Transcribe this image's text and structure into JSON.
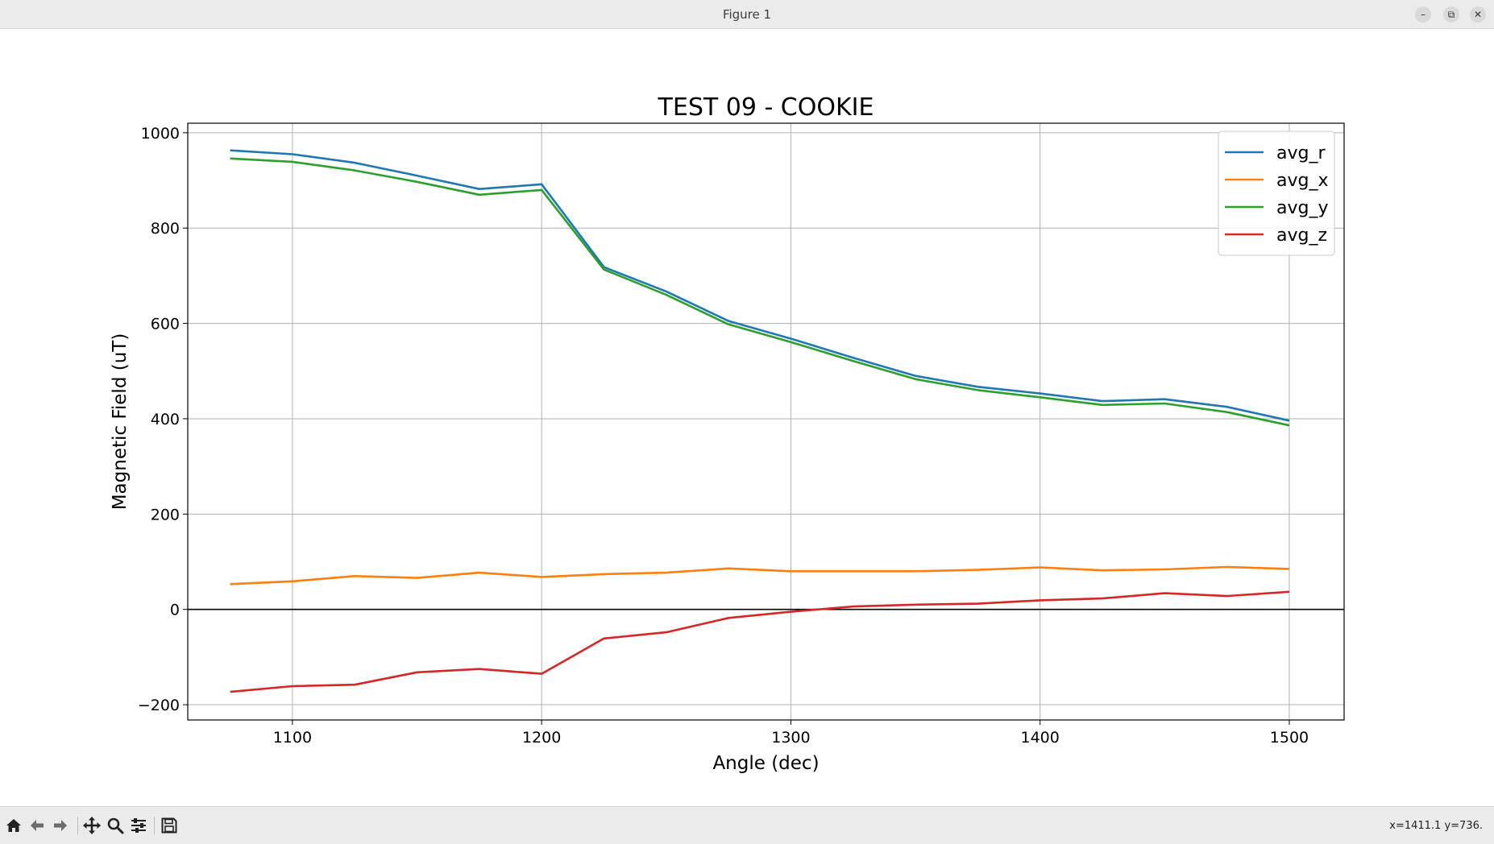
{
  "window": {
    "title": "Figure 1",
    "controls": {
      "minimize": "–",
      "restore": "⧉",
      "close": "✕"
    }
  },
  "toolbar": {
    "buttons": [
      {
        "name": "home-button",
        "icon": "home-icon"
      },
      {
        "name": "back-button",
        "icon": "arrow-left-icon"
      },
      {
        "name": "forward-button",
        "icon": "arrow-right-icon"
      },
      {
        "name": "pan-button",
        "icon": "move-icon"
      },
      {
        "name": "zoom-button",
        "icon": "magnifier-icon"
      },
      {
        "name": "configure-subplots-button",
        "icon": "sliders-icon"
      },
      {
        "name": "save-button",
        "icon": "floppy-disk-icon"
      }
    ],
    "coordinates": "x=1411.1 y=736."
  },
  "chart_data": {
    "type": "line",
    "title": "TEST 09 - COOKIE",
    "xlabel": "Angle (dec)",
    "ylabel": "Magnetic Field (uT)",
    "xlim": [
      1058,
      1522
    ],
    "ylim": [
      -232,
      1020
    ],
    "xticks": [
      1100,
      1200,
      1300,
      1400,
      1500
    ],
    "yticks": [
      -200,
      0,
      200,
      400,
      600,
      800,
      1000
    ],
    "ytick_labels": [
      "−200",
      "0",
      "200",
      "400",
      "600",
      "800",
      "1000"
    ],
    "grid": true,
    "zero_line": true,
    "legend_position": "top-right",
    "x": [
      1075,
      1100,
      1125,
      1150,
      1175,
      1200,
      1225,
      1250,
      1275,
      1300,
      1325,
      1350,
      1375,
      1400,
      1425,
      1450,
      1475,
      1500
    ],
    "series": [
      {
        "name": "avg_r",
        "color": "#1f77b4",
        "values": [
          963,
          955,
          937,
          910,
          882,
          892,
          718,
          667,
          605,
          568,
          528,
          490,
          467,
          453,
          437,
          441,
          425,
          396
        ]
      },
      {
        "name": "avg_x",
        "color": "#ff7f0e",
        "values": [
          53,
          59,
          70,
          66,
          77,
          68,
          74,
          77,
          86,
          80,
          80,
          80,
          83,
          88,
          82,
          84,
          89,
          85
        ]
      },
      {
        "name": "avg_y",
        "color": "#2ca02c",
        "values": [
          946,
          939,
          921,
          897,
          870,
          880,
          713,
          660,
          598,
          561,
          521,
          483,
          460,
          445,
          429,
          432,
          414,
          386
        ]
      },
      {
        "name": "avg_z",
        "color": "#d62728",
        "values": [
          -173,
          -161,
          -158,
          -132,
          -125,
          -135,
          -61,
          -48,
          -18,
          -5,
          6,
          10,
          12,
          19,
          23,
          34,
          28,
          37
        ]
      }
    ]
  }
}
